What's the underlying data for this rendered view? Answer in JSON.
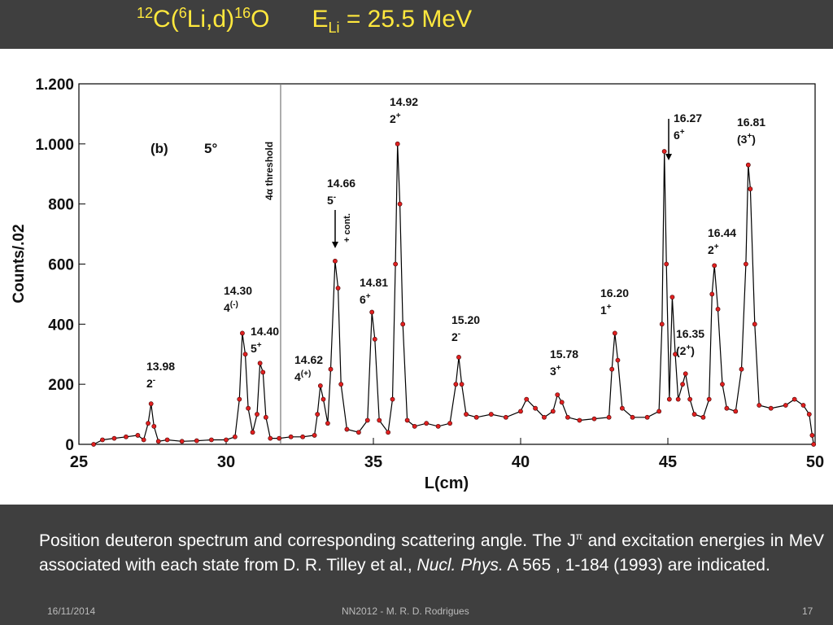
{
  "slide_title": {
    "parts": [
      "12",
      "C(",
      "6",
      "Li,d)",
      "16",
      "O",
      "E",
      "Li",
      "= 25.5 MeV"
    ]
  },
  "chart_data": {
    "type": "line",
    "x_label": "L(cm)",
    "y_label": "Counts/.02",
    "xlim": [
      25,
      50
    ],
    "ylim": [
      0,
      1200
    ],
    "xticks": [
      25,
      30,
      35,
      40,
      45,
      50
    ],
    "yticks": [
      0,
      200,
      400,
      600,
      800,
      {
        "value": 1000,
        "label": "1.000"
      },
      {
        "value": 1200,
        "label": "1.200"
      }
    ],
    "line_color": "#000000",
    "marker_color": "#e02020",
    "x": [
      25.5,
      25.8,
      26.2,
      26.6,
      27.0,
      27.2,
      27.35,
      27.45,
      27.55,
      27.7,
      28.0,
      28.5,
      29.0,
      29.5,
      30.0,
      30.3,
      30.45,
      30.55,
      30.65,
      30.75,
      30.9,
      31.05,
      31.15,
      31.25,
      31.35,
      31.5,
      31.8,
      32.2,
      32.6,
      33.0,
      33.1,
      33.2,
      33.3,
      33.45,
      33.55,
      33.7,
      33.8,
      33.9,
      34.1,
      34.5,
      34.8,
      34.95,
      35.05,
      35.2,
      35.5,
      35.65,
      35.75,
      35.82,
      35.9,
      36.0,
      36.15,
      36.4,
      36.8,
      37.2,
      37.6,
      37.8,
      37.9,
      38.0,
      38.15,
      38.5,
      39.0,
      39.5,
      40.0,
      40.2,
      40.5,
      40.8,
      41.1,
      41.25,
      41.4,
      41.6,
      42.0,
      42.5,
      43.0,
      43.1,
      43.2,
      43.3,
      43.45,
      43.8,
      44.3,
      44.7,
      44.8,
      44.88,
      44.95,
      45.05,
      45.15,
      45.25,
      45.35,
      45.5,
      45.6,
      45.75,
      45.9,
      46.2,
      46.4,
      46.5,
      46.58,
      46.7,
      46.85,
      47.0,
      47.3,
      47.5,
      47.65,
      47.73,
      47.8,
      47.95,
      48.1,
      48.5,
      49.0,
      49.3,
      49.6,
      49.8,
      49.9,
      49.95
    ],
    "values": [
      0,
      15,
      20,
      25,
      30,
      15,
      70,
      135,
      60,
      10,
      15,
      10,
      12,
      15,
      15,
      25,
      150,
      370,
      300,
      120,
      40,
      100,
      270,
      240,
      90,
      20,
      20,
      25,
      25,
      30,
      100,
      195,
      150,
      70,
      250,
      610,
      520,
      200,
      50,
      40,
      80,
      440,
      350,
      80,
      40,
      150,
      600,
      1000,
      800,
      400,
      80,
      60,
      70,
      60,
      70,
      200,
      290,
      200,
      100,
      90,
      100,
      90,
      110,
      150,
      120,
      90,
      110,
      165,
      140,
      90,
      80,
      85,
      90,
      250,
      370,
      280,
      120,
      90,
      90,
      110,
      400,
      975,
      600,
      150,
      490,
      300,
      150,
      200,
      235,
      150,
      100,
      90,
      150,
      500,
      595,
      450,
      200,
      120,
      110,
      250,
      600,
      930,
      850,
      400,
      130,
      120,
      130,
      150,
      130,
      100,
      30,
      0
    ],
    "panel": "(b)",
    "angle": "5°",
    "threshold": {
      "x": 31.85,
      "label": "4α threshold"
    },
    "cont_label": "+ cont.",
    "annotations": [
      {
        "energy": "13.98",
        "spin": "2",
        "parity": "-"
      },
      {
        "energy": "14.30",
        "spin": "4",
        "parity": "(-)"
      },
      {
        "energy": "14.40",
        "spin": "5",
        "parity": "+"
      },
      {
        "energy": "14.62",
        "spin": "4",
        "parity": "(+)"
      },
      {
        "energy": "14.66",
        "spin": "5",
        "parity": "-"
      },
      {
        "energy": "14.81",
        "spin": "6",
        "parity": "+"
      },
      {
        "energy": "14.92",
        "spin": "2",
        "parity": "+"
      },
      {
        "energy": "15.20",
        "spin": "2",
        "parity": "-"
      },
      {
        "energy": "15.78",
        "spin": "3",
        "parity": "+"
      },
      {
        "energy": "16.20",
        "spin": "1",
        "parity": "+"
      },
      {
        "energy": "16.27",
        "spin": "6",
        "parity": "+"
      },
      {
        "energy": "16.35",
        "spin": "(2",
        "parity": "+",
        "close": ")"
      },
      {
        "energy": "16.44",
        "spin": "2",
        "parity": "+"
      },
      {
        "energy": "16.81",
        "spin": "(3",
        "parity": "+",
        "close": ")"
      }
    ]
  },
  "caption": {
    "parts": [
      "Position deuteron spectrum and corresponding scattering angle. The J",
      "π",
      " and excitation energies in MeV associated with each state from D. R. Tilley et al., ",
      "Nucl. Phys.",
      " A 565 , 1-184 (1993) are indicated."
    ]
  },
  "footer": {
    "date": "16/11/2014",
    "author": "NN2012 - M. R. D. Rodrigues",
    "page": 17
  }
}
